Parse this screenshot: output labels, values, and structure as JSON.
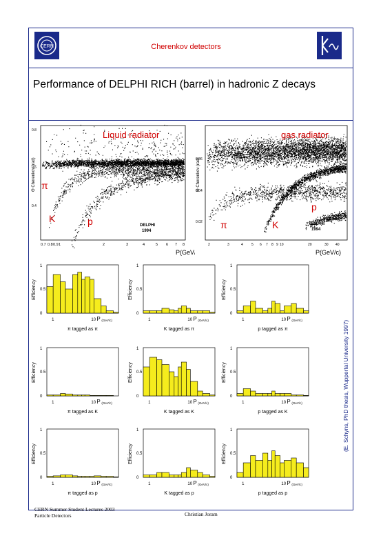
{
  "header": {
    "title": "Cherenkov detectors",
    "logo_left": "cern-logo",
    "logo_right": "wuppertal-logo"
  },
  "slide": {
    "heading": "Performance of DELPHI RICH (barrel) in hadronic Z decays",
    "side_note": "(E. Schyns, PhD thesis, Wuppertal University 1997)"
  },
  "scatter_plots": {
    "liquid": {
      "label": "Liquid radiator",
      "ylabel": "Θ Cherenkov (rad)",
      "yticks": [
        "0.8",
        "0.6",
        "0.4"
      ],
      "xticks": [
        "0.7",
        "0.8",
        "0.9",
        "1",
        "2",
        "3",
        "4",
        "5",
        "6",
        "7",
        "8"
      ],
      "xlabel": "P(GeV/c)",
      "particles": [
        "π",
        "K",
        "p"
      ],
      "badge": [
        "DELPHI",
        "1994"
      ]
    },
    "gas": {
      "label": "gas radiator",
      "ylabel": "Θ Cherenkov (rad)",
      "yticks": [
        "0.06",
        "0.04",
        "0.02"
      ],
      "xticks": [
        "2",
        "3",
        "4",
        "5",
        "6",
        "7",
        "8",
        "9",
        "10",
        "20",
        "30",
        "40"
      ],
      "xlabel": "P(GeV/c)",
      "particles": [
        "π",
        "K",
        "p"
      ],
      "badge": [
        "DELPHI",
        "1994"
      ]
    }
  },
  "efficiency_grid": {
    "ylabel": "Efficiency",
    "yticks": [
      "1",
      "0.5",
      "0"
    ],
    "xtick_1": "1",
    "xtick_10": "10",
    "xaxis": "P",
    "xunit": "(GeV/c)",
    "panels": [
      {
        "caption": "π tagged as π"
      },
      {
        "caption": "K tagged as π"
      },
      {
        "caption": "p tagged as π"
      },
      {
        "caption": "π tagged as K"
      },
      {
        "caption": "K tagged as K"
      },
      {
        "caption": "p tagged as K"
      },
      {
        "caption": "π tagged as p"
      },
      {
        "caption": "K tagged as p"
      },
      {
        "caption": "p tagged as p"
      }
    ]
  },
  "chart_data": [
    {
      "type": "area",
      "title": "π tagged as π",
      "x_scale": "log",
      "xlim": [
        0.7,
        40
      ],
      "ylim": [
        0,
        1
      ],
      "x": [
        0.7,
        1,
        1.5,
        2,
        3,
        4,
        5,
        6,
        8,
        10,
        15,
        20,
        30,
        40
      ],
      "values": [
        0.55,
        0.8,
        0.65,
        0.5,
        0.8,
        0.85,
        0.7,
        0.75,
        0.7,
        0.3,
        0.15,
        0.05,
        0.02,
        0.0
      ]
    },
    {
      "type": "area",
      "title": "K tagged as π",
      "x_scale": "log",
      "xlim": [
        0.7,
        40
      ],
      "ylim": [
        0,
        1
      ],
      "x": [
        0.7,
        1,
        1.5,
        2,
        3,
        4,
        5,
        6,
        8,
        10,
        15,
        20,
        30,
        40
      ],
      "values": [
        0.05,
        0.05,
        0.05,
        0.1,
        0.07,
        0.05,
        0.1,
        0.15,
        0.1,
        0.05,
        0.05,
        0.05,
        0.02,
        0.0
      ]
    },
    {
      "type": "area",
      "title": "p tagged as π",
      "x_scale": "log",
      "xlim": [
        0.7,
        40
      ],
      "ylim": [
        0,
        1
      ],
      "x": [
        0.7,
        1,
        1.5,
        2,
        3,
        4,
        5,
        6,
        8,
        10,
        15,
        20,
        30,
        40
      ],
      "values": [
        0.05,
        0.15,
        0.25,
        0.1,
        0.05,
        0.1,
        0.25,
        0.2,
        0.05,
        0.15,
        0.2,
        0.1,
        0.05,
        0.0
      ]
    },
    {
      "type": "area",
      "title": "π tagged as K",
      "x_scale": "log",
      "xlim": [
        0.7,
        40
      ],
      "ylim": [
        0,
        1
      ],
      "x": [
        0.7,
        1,
        1.5,
        2,
        3,
        4,
        5,
        6,
        8,
        10,
        15,
        20,
        30,
        40
      ],
      "values": [
        0.02,
        0.02,
        0.05,
        0.04,
        0.02,
        0.02,
        0.02,
        0.02,
        0.01,
        0.01,
        0.01,
        0.01,
        0.0,
        0.0
      ]
    },
    {
      "type": "area",
      "title": "K tagged as K",
      "x_scale": "log",
      "xlim": [
        0.7,
        40
      ],
      "ylim": [
        0,
        1
      ],
      "x": [
        0.7,
        1,
        1.5,
        2,
        3,
        4,
        5,
        6,
        8,
        10,
        15,
        20,
        30,
        40
      ],
      "values": [
        0.6,
        0.8,
        0.75,
        0.65,
        0.5,
        0.4,
        0.6,
        0.7,
        0.55,
        0.3,
        0.1,
        0.05,
        0.02,
        0.0
      ]
    },
    {
      "type": "area",
      "title": "p tagged as K",
      "x_scale": "log",
      "xlim": [
        0.7,
        40
      ],
      "ylim": [
        0,
        1
      ],
      "x": [
        0.7,
        1,
        1.5,
        2,
        3,
        4,
        5,
        6,
        8,
        10,
        15,
        20,
        30,
        40
      ],
      "values": [
        0.05,
        0.15,
        0.1,
        0.05,
        0.05,
        0.05,
        0.1,
        0.05,
        0.05,
        0.05,
        0.02,
        0.02,
        0.01,
        0.0
      ]
    },
    {
      "type": "area",
      "title": "π tagged as p",
      "x_scale": "log",
      "xlim": [
        0.7,
        40
      ],
      "ylim": [
        0,
        1
      ],
      "x": [
        0.7,
        1,
        1.5,
        2,
        3,
        4,
        5,
        6,
        8,
        10,
        15,
        20,
        30,
        40
      ],
      "values": [
        0.02,
        0.03,
        0.05,
        0.05,
        0.03,
        0.02,
        0.02,
        0.02,
        0.02,
        0.03,
        0.02,
        0.02,
        0.01,
        0.0
      ]
    },
    {
      "type": "area",
      "title": "K tagged as p",
      "x_scale": "log",
      "xlim": [
        0.7,
        40
      ],
      "ylim": [
        0,
        1
      ],
      "x": [
        0.7,
        1,
        1.5,
        2,
        3,
        4,
        5,
        6,
        8,
        10,
        15,
        20,
        30,
        40
      ],
      "values": [
        0.05,
        0.05,
        0.1,
        0.1,
        0.05,
        0.05,
        0.05,
        0.1,
        0.2,
        0.15,
        0.1,
        0.05,
        0.02,
        0.0
      ]
    },
    {
      "type": "area",
      "title": "p tagged as p",
      "x_scale": "log",
      "xlim": [
        0.7,
        40
      ],
      "ylim": [
        0,
        1
      ],
      "x": [
        0.7,
        1,
        1.5,
        2,
        3,
        4,
        5,
        6,
        8,
        10,
        15,
        20,
        30,
        40
      ],
      "values": [
        0.1,
        0.3,
        0.45,
        0.35,
        0.5,
        0.35,
        0.55,
        0.45,
        0.3,
        0.35,
        0.4,
        0.3,
        0.2,
        0.1
      ]
    }
  ],
  "footer": {
    "left_line1": "CERN Summer Student Lectures 2003",
    "left_line2": "Particle Detectors",
    "center": "Christian Joram"
  }
}
